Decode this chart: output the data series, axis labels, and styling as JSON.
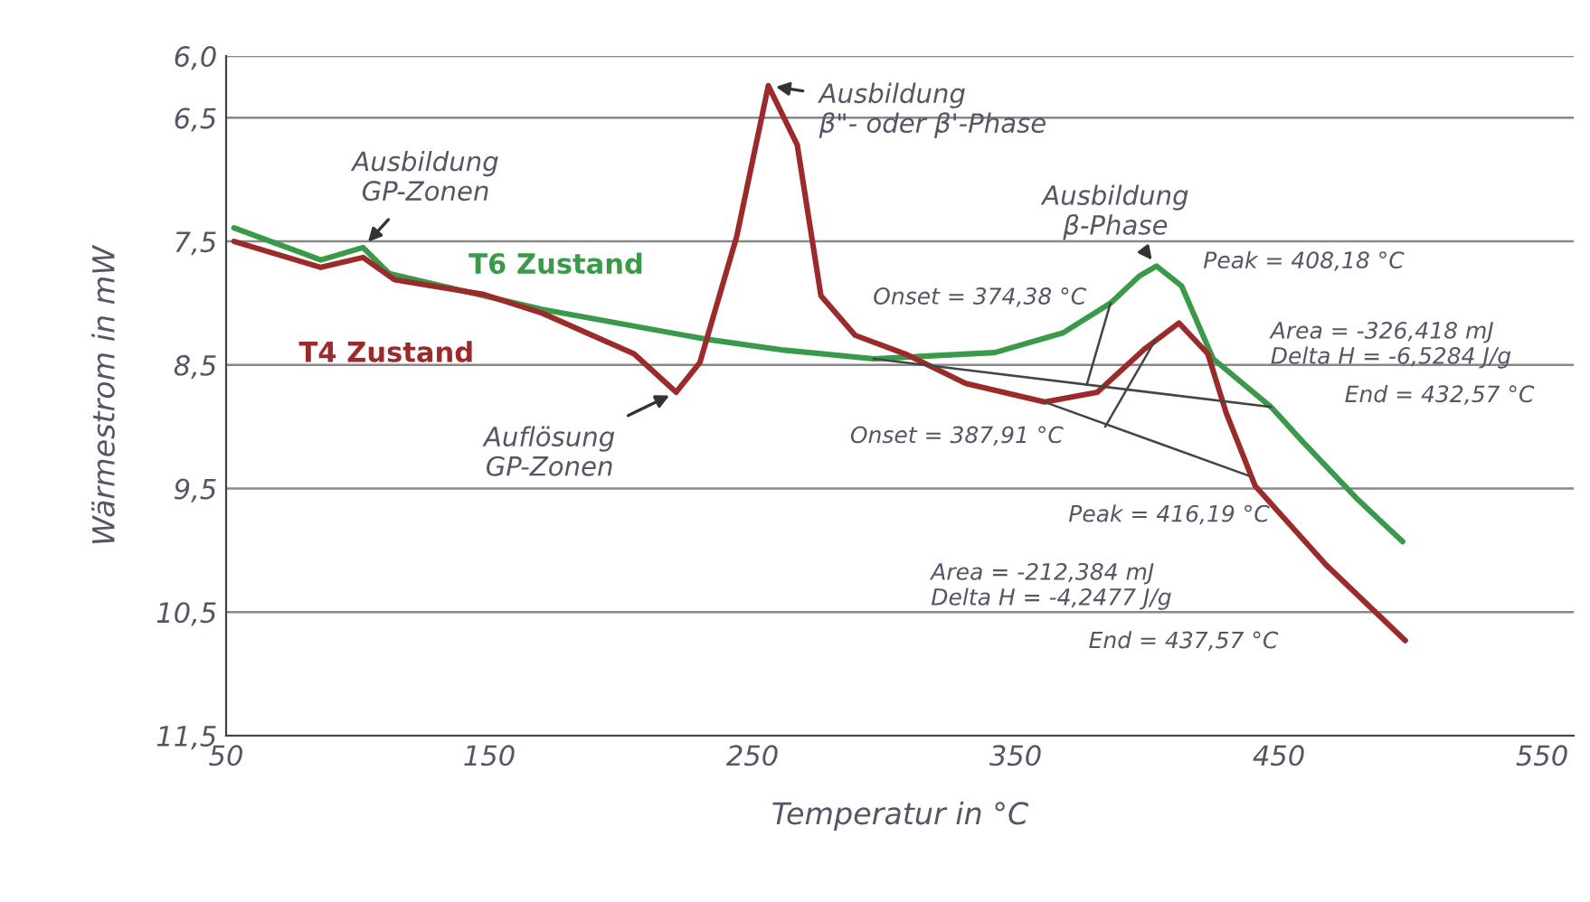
{
  "chart_data": {
    "type": "line",
    "xlabel": "Temperatur in °C",
    "ylabel": "Wärmestrom in mW",
    "xlim": [
      50,
      562
    ],
    "xticks": [
      50,
      150,
      250,
      350,
      450,
      550
    ],
    "ylim": [
      11.5,
      6.0
    ],
    "yticks": [
      {
        "value": 6.0,
        "label": "6,0"
      },
      {
        "value": 6.5,
        "label": "6,5"
      },
      {
        "value": 7.5,
        "label": "7,5"
      },
      {
        "value": 8.5,
        "label": "8,5"
      },
      {
        "value": 9.5,
        "label": "9,5"
      },
      {
        "value": 10.5,
        "label": "10,5"
      },
      {
        "value": 11.5,
        "label": "11,5"
      }
    ],
    "grid": "y",
    "legend": false,
    "line_style": "solid",
    "series": [
      {
        "name": "T6 Zustand",
        "color": "#3a9a4a",
        "x": [
          53,
          86,
          102,
          112,
          170,
          232,
          262,
          296,
          342,
          368,
          386,
          397,
          403.5,
          413,
          425,
          447,
          459,
          480,
          497
        ],
        "values": [
          7.39,
          7.65,
          7.55,
          7.76,
          8.05,
          8.29,
          8.38,
          8.45,
          8.4,
          8.24,
          8.0,
          7.78,
          7.7,
          7.86,
          8.45,
          8.84,
          9.12,
          9.59,
          9.93
        ]
      },
      {
        "name": "T4 Zustand",
        "color": "#9b2b2b",
        "x": [
          53,
          86,
          102,
          114,
          148,
          170,
          205,
          221,
          230,
          244,
          256,
          267,
          276,
          289,
          308,
          331,
          361,
          381,
          399,
          412,
          423,
          430,
          441,
          468,
          498
        ],
        "values": [
          7.5,
          7.71,
          7.63,
          7.81,
          7.93,
          8.08,
          8.41,
          8.72,
          8.48,
          7.46,
          6.24,
          6.72,
          7.94,
          8.26,
          8.41,
          8.65,
          8.8,
          8.72,
          8.37,
          8.16,
          8.41,
          8.89,
          9.48,
          10.12,
          10.73
        ]
      },
      {
        "color": "#444444",
        "x": [
          296,
          447
        ],
        "values": [
          8.45,
          8.84
        ]
      },
      {
        "color": "#444444",
        "x": [
          361,
          439
        ],
        "values": [
          8.8,
          9.4
        ]
      },
      {
        "color": "#444444",
        "x": [
          377,
          386
        ],
        "values": [
          8.66,
          8.0
        ]
      },
      {
        "color": "#444444",
        "x": [
          384,
          403
        ],
        "values": [
          9.0,
          8.3
        ]
      }
    ],
    "annotations": [
      {
        "text": "Ausbildung\nGP-Zonen",
        "x": 102,
        "y": 7.55
      },
      {
        "text": "Ausbildung\nβ\"- oder β'-Phase",
        "x": 256,
        "y": 6.24
      },
      {
        "text": "Auflösung\nGP-Zonen",
        "x": 221,
        "y": 8.72
      },
      {
        "text": "Ausbildung\nβ-Phase",
        "x": 403.5,
        "y": 7.7
      },
      "Peak = 408,18 °C",
      "Onset = 374,38 °C",
      "Area = -326,418 mJ\nDelta H = -6,5284 J/g",
      "End = 432,57 °C",
      "Onset = 387,91 °C",
      "Area = -212,384 mJ\nDelta H = -4,2477 J/g",
      "Peak = 416,19 °C",
      "End = 437,57 °C"
    ]
  }
}
